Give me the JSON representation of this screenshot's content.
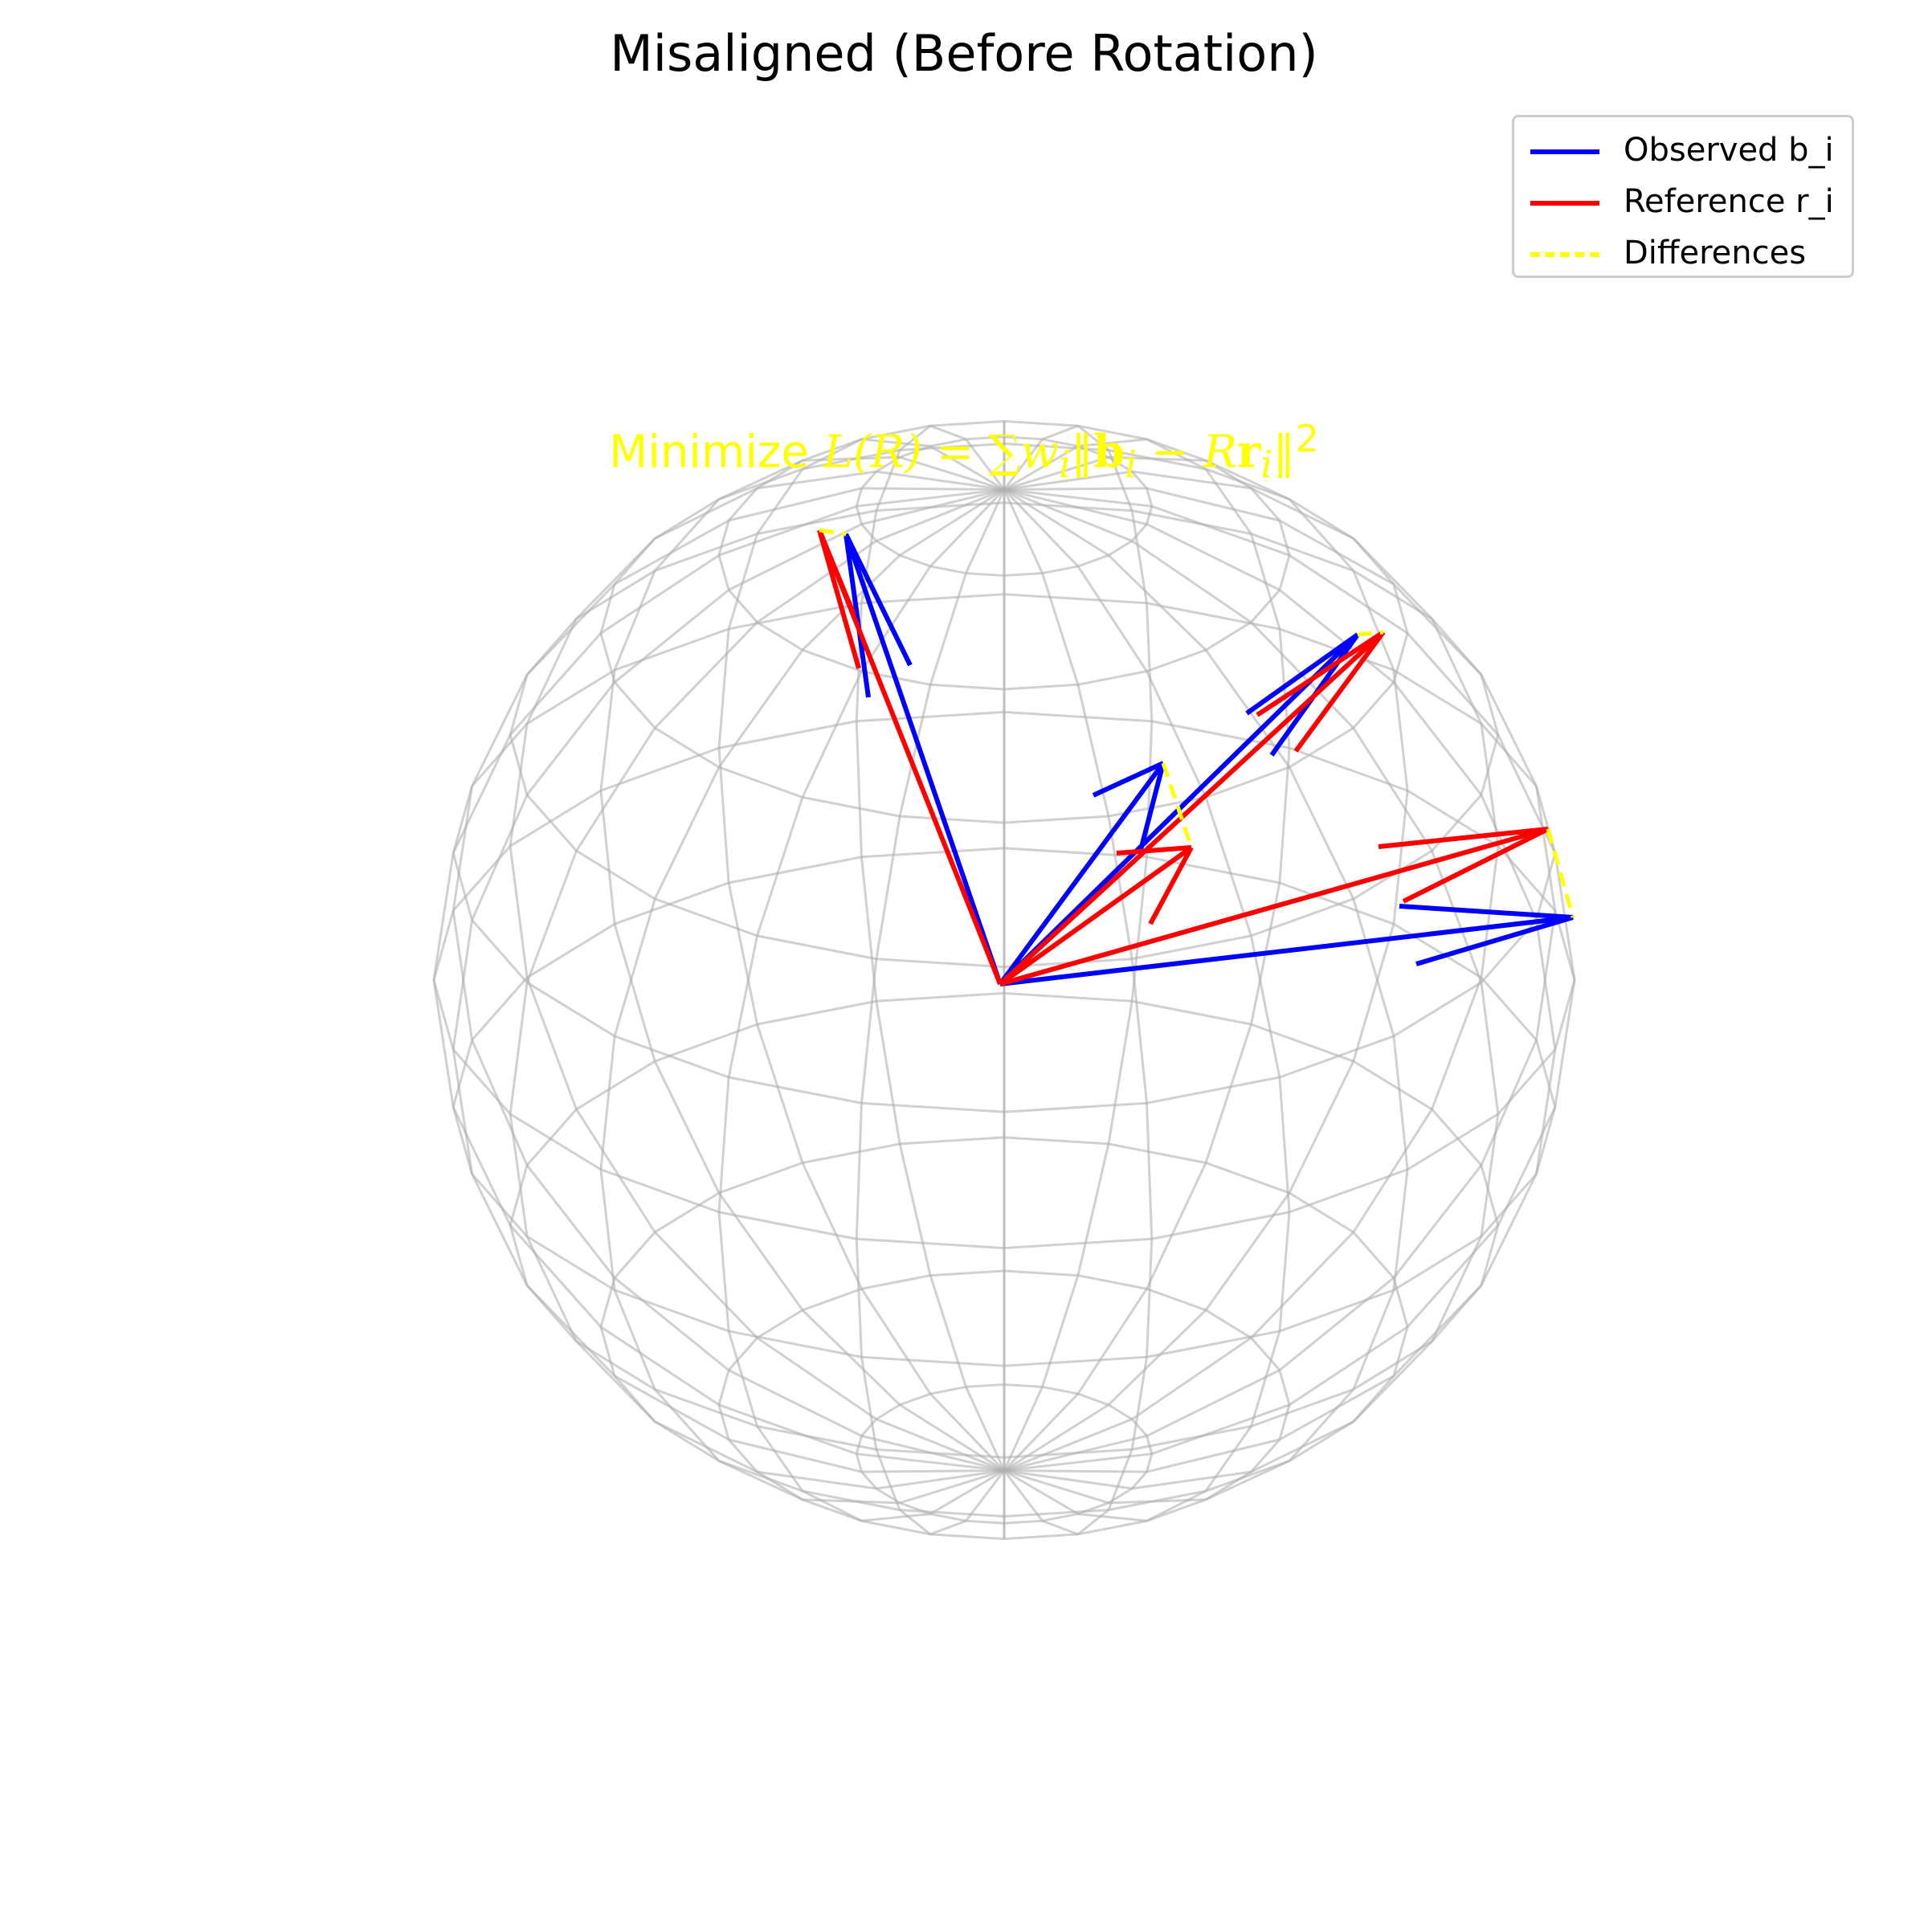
{
  "title": "Misaligned (Before Rotation)",
  "formula": {
    "prefix": "Minimize ",
    "lhs": "L(R) = ∑",
    "w": "w",
    "i1": "i",
    "norm_open": "‖",
    "b": "b",
    "i2": "i",
    "minus": " − ",
    "R": "R",
    "r": "r",
    "i3": "i",
    "norm_close": "‖",
    "sq": "2"
  },
  "legend": {
    "placement": "top-right",
    "items": [
      {
        "label": "Observed b_i",
        "color": "#0000ff",
        "style": "solid"
      },
      {
        "label": "Reference r_i",
        "color": "#ff0000",
        "style": "solid"
      },
      {
        "label": "Differences",
        "color": "#ffff00",
        "style": "dashed"
      }
    ]
  },
  "colors": {
    "observed": "#0000ff",
    "reference": "#ff0000",
    "difference": "#ffff00",
    "sphere_wire": "#b0b0b0"
  },
  "diagram": {
    "type": "3d-vector-comparison",
    "wireframe": "sphere",
    "vector_pairs": 4,
    "axes_visible": false
  }
}
